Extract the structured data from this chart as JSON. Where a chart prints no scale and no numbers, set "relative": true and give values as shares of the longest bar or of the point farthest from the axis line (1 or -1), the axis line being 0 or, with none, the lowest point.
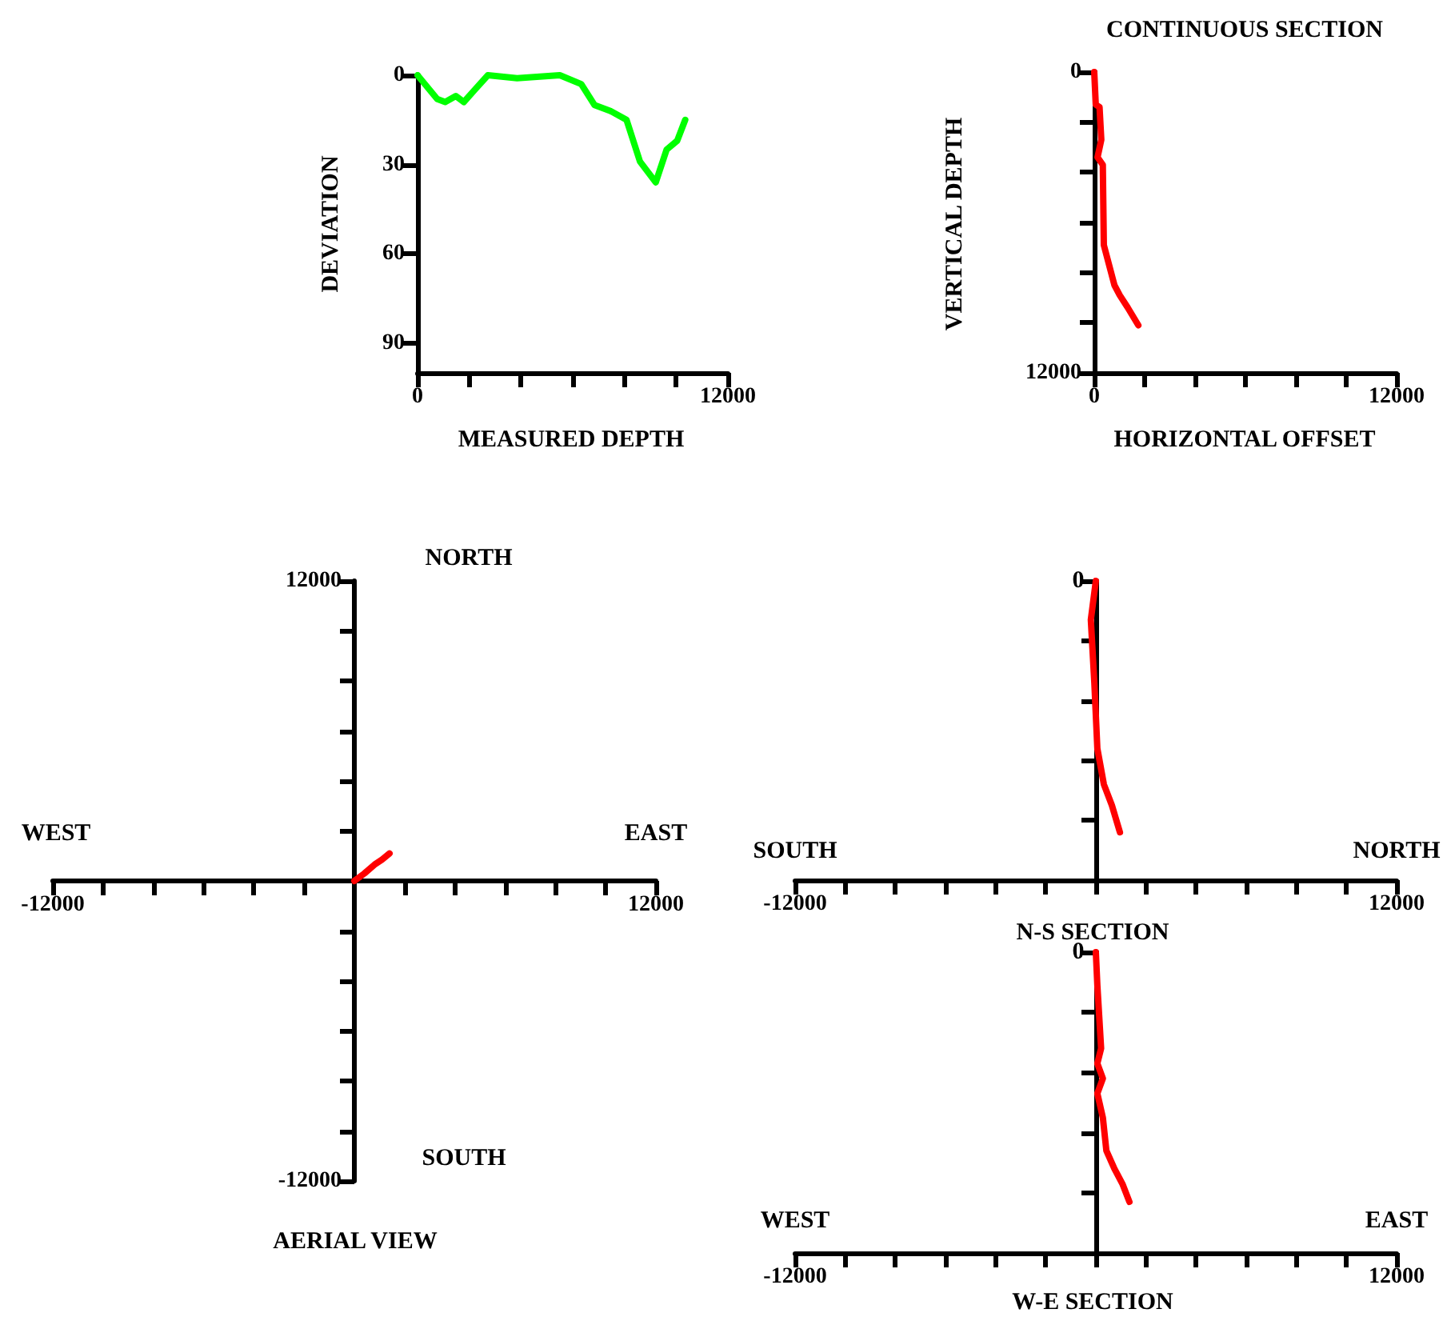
{
  "chart_data": [
    {
      "type": "line",
      "xlabel": "MEASURED DEPTH",
      "ylabel": "DEVIATION",
      "color": "#00ff00",
      "x": [
        0,
        760,
        1070,
        1480,
        1790,
        2200,
        2720,
        3850,
        5500,
        6330,
        6840,
        7460,
        8080,
        8600,
        9210,
        9630,
        10040,
        10350
      ],
      "values": [
        0,
        8,
        9,
        7,
        9,
        5,
        0,
        1,
        0,
        3,
        10,
        12,
        15,
        29,
        36,
        25,
        22,
        15
      ],
      "xlim": [
        0,
        12000
      ],
      "xticks": [
        0,
        {
          "value": 2000,
          "label": null
        },
        {
          "value": 4000,
          "label": null
        },
        {
          "value": 6000,
          "label": null
        },
        {
          "value": 8000,
          "label": null
        },
        {
          "value": 10000,
          "label": null
        },
        12000
      ],
      "ylim": [
        100,
        0
      ],
      "yticks": [
        0,
        30,
        60,
        90
      ]
    },
    {
      "type": "line",
      "title": "CONTINUOUS SECTION",
      "xlabel": "HORIZONTAL OFFSET",
      "ylabel": "VERTICAL DEPTH",
      "color": "#ff0000",
      "x": [
        0,
        60,
        210,
        280,
        130,
        340,
        380,
        590,
        800,
        1010,
        1330,
        1750
      ],
      "values": [
        0,
        1300,
        1400,
        2700,
        3400,
        3700,
        6900,
        7700,
        8500,
        8900,
        9400,
        10100
      ],
      "xlim": [
        0,
        12000
      ],
      "xticks": [
        0,
        {
          "value": 2000,
          "label": null
        },
        {
          "value": 4000,
          "label": null
        },
        {
          "value": 6000,
          "label": null
        },
        {
          "value": 8000,
          "label": null
        },
        {
          "value": 10000,
          "label": null
        },
        12000
      ],
      "ylim": [
        12000,
        0
      ],
      "yticks": [
        0,
        {
          "value": 2000,
          "label": null
        },
        {
          "value": 4000,
          "label": null
        },
        {
          "value": 6000,
          "label": null
        },
        {
          "value": 8000,
          "label": null
        },
        {
          "value": 10000,
          "label": null
        },
        12000
      ]
    },
    {
      "type": "line",
      "title": "AERIAL VIEW",
      "annotations": [
        "NORTH",
        "WEST",
        "EAST",
        "SOUTH"
      ],
      "color": "#ff0000",
      "x": [
        0,
        400,
        800,
        1100,
        1400
      ],
      "values": [
        0,
        300,
        650,
        850,
        1100
      ],
      "xlim": [
        -12000,
        12000
      ],
      "xticks": [
        -12000,
        {
          "value": -10000,
          "label": null
        },
        {
          "value": -8000,
          "label": null
        },
        {
          "value": -6000,
          "label": null
        },
        {
          "value": -4000,
          "label": null
        },
        {
          "value": -2000,
          "label": null
        },
        {
          "value": 2000,
          "label": null
        },
        {
          "value": 4000,
          "label": null
        },
        {
          "value": 6000,
          "label": null
        },
        {
          "value": 8000,
          "label": null
        },
        {
          "value": 10000,
          "label": null
        },
        12000
      ],
      "ylim": [
        -12000,
        12000
      ],
      "yticks": [
        -12000,
        {
          "value": -10000,
          "label": null
        },
        {
          "value": -8000,
          "label": null
        },
        {
          "value": -6000,
          "label": null
        },
        {
          "value": -4000,
          "label": null
        },
        {
          "value": -2000,
          "label": null
        },
        {
          "value": 2000,
          "label": null
        },
        {
          "value": 4000,
          "label": null
        },
        {
          "value": 6000,
          "label": null
        },
        {
          "value": 8000,
          "label": null
        },
        {
          "value": 10000,
          "label": null
        },
        12000
      ]
    },
    {
      "type": "line",
      "title": "N-S SECTION",
      "annotations": [
        "SOUTH",
        "NORTH",
        "0"
      ],
      "color": "#ff0000",
      "relative": true,
      "x": [
        0,
        -200,
        -60,
        60,
        320,
        640,
        960
      ],
      "values": [
        1,
        0.87,
        0.66,
        0.44,
        0.32,
        0.25,
        0.16
      ],
      "xlim": [
        -12000,
        12000
      ],
      "xticks": [
        -12000,
        {
          "value": -10000,
          "label": null
        },
        {
          "value": -8000,
          "label": null
        },
        {
          "value": -6000,
          "label": null
        },
        {
          "value": -4000,
          "label": null
        },
        {
          "value": -2000,
          "label": null
        },
        {
          "value": 0,
          "label": null
        },
        {
          "value": 2000,
          "label": null
        },
        {
          "value": 4000,
          "label": null
        },
        {
          "value": 6000,
          "label": null
        },
        {
          "value": 8000,
          "label": null
        },
        {
          "value": 10000,
          "label": null
        },
        12000
      ]
    },
    {
      "type": "line",
      "title": "W-E SECTION",
      "annotations": [
        "WEST",
        "EAST",
        "0"
      ],
      "color": "#ff0000",
      "relative": true,
      "x": [
        0,
        60,
        210,
        60,
        280,
        60,
        280,
        420,
        740,
        1060,
        1340
      ],
      "values": [
        1,
        0.89,
        0.68,
        0.63,
        0.58,
        0.53,
        0.45,
        0.34,
        0.28,
        0.23,
        0.17
      ],
      "xlim": [
        -12000,
        12000
      ],
      "xticks": [
        -12000,
        {
          "value": -10000,
          "label": null
        },
        {
          "value": -8000,
          "label": null
        },
        {
          "value": -6000,
          "label": null
        },
        {
          "value": -4000,
          "label": null
        },
        {
          "value": -2000,
          "label": null
        },
        {
          "value": 0,
          "label": null
        },
        {
          "value": 2000,
          "label": null
        },
        {
          "value": 4000,
          "label": null
        },
        {
          "value": 6000,
          "label": null
        },
        {
          "value": 8000,
          "label": null
        },
        {
          "value": 10000,
          "label": null
        },
        12000
      ]
    }
  ]
}
